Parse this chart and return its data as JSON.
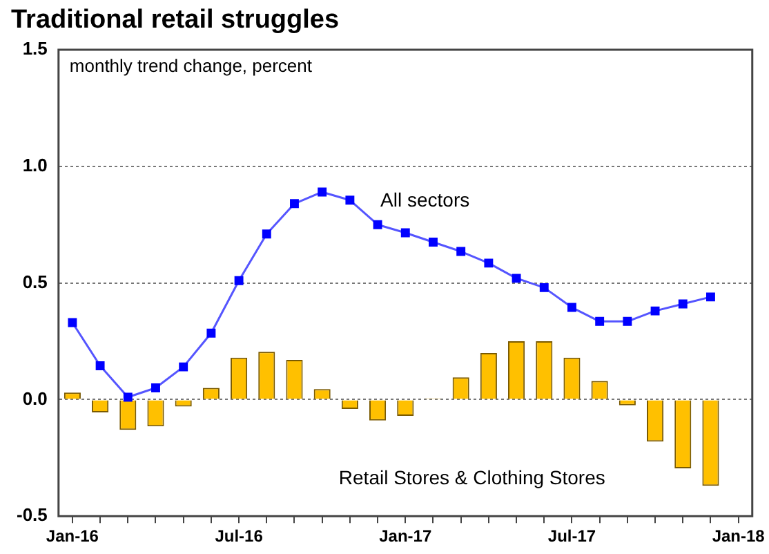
{
  "chart_data": {
    "type": "bar",
    "title": "Traditional retail struggles",
    "subtitle": "monthly trend change, percent",
    "categories": [
      "Jan-16",
      null,
      null,
      null,
      null,
      null,
      "Jul-16",
      null,
      null,
      null,
      null,
      null,
      "Jan-17",
      null,
      null,
      null,
      null,
      null,
      "Jul-17",
      null,
      null,
      null,
      null,
      null,
      "Jan-18"
    ],
    "series": [
      {
        "name": "Retail Stores & Clothing Stores",
        "color": "#ffc000",
        "values": [
          0.03,
          -0.055,
          -0.13,
          -0.115,
          -0.03,
          0.05,
          0.18,
          0.205,
          0.17,
          0.045,
          -0.04,
          -0.09,
          -0.07,
          0.005,
          0.095,
          0.2,
          0.25,
          0.25,
          0.18,
          0.08,
          -0.025,
          -0.18,
          -0.295,
          -0.37,
          null
        ]
      },
      {
        "name": "All sectors",
        "type": "line",
        "color": "#0000ff",
        "values": [
          0.33,
          0.145,
          0.01,
          0.05,
          0.14,
          0.285,
          0.51,
          0.71,
          0.84,
          0.89,
          0.855,
          0.75,
          0.715,
          0.675,
          0.635,
          0.585,
          0.52,
          0.48,
          0.395,
          0.335,
          0.335,
          0.38,
          0.41,
          0.44,
          null
        ]
      }
    ],
    "ylim": [
      -0.5,
      1.5
    ],
    "yticks": [
      {
        "value": -0.5,
        "label": "-0.5"
      },
      {
        "value": 0,
        "label": "0.0"
      },
      {
        "value": 0.5,
        "label": "0.5"
      },
      {
        "value": 1,
        "label": "1.0"
      },
      {
        "value": 1.5,
        "label": "1.5"
      }
    ],
    "grid": "y",
    "legend": false,
    "marker": "square"
  }
}
